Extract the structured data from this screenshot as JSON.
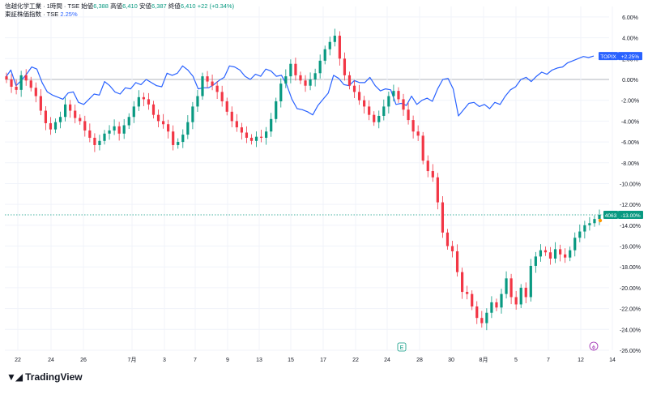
{
  "legend": {
    "line1_name": "信越化学工業 · 1時間 · TSE",
    "line1_open_label": "始値",
    "line1_open": "6,388",
    "line1_high_label": "高値",
    "line1_high": "6,410",
    "line1_low_label": "安値",
    "line1_low": "6,387",
    "line1_close_label": "終値",
    "line1_close": "6,410",
    "line1_change": "+22 (+0.34%)",
    "line2_name": "東証株価指数 · TSE",
    "line2_value": "2.25%"
  },
  "brand": {
    "name": "TradingView"
  },
  "colors": {
    "up": "#089981",
    "down": "#f23645",
    "compare": "#2962ff",
    "grid": "#f0f3fa",
    "zero": "#b2b5be"
  },
  "chart_data": {
    "type": "line",
    "y_axis": {
      "min": -26,
      "max": 7,
      "unit": "%",
      "ticks": [
        "6.00%",
        "4.00%",
        "2.00%",
        "0.00%",
        "-2.00%",
        "-4.00%",
        "-6.00%",
        "-8.00%",
        "-10.00%",
        "-12.00%",
        "-14.00%",
        "-16.00%",
        "-18.00%",
        "-20.00%",
        "-22.00%",
        "-24.00%",
        "-26.00%"
      ]
    },
    "x_ticks": [
      "22",
      "24",
      "26",
      "7月",
      "3",
      "7",
      "9",
      "13",
      "15",
      "17",
      "22",
      "24",
      "28",
      "30",
      "8月",
      "5",
      "7",
      "12",
      "14"
    ],
    "series": [
      {
        "name": "TOPIX",
        "badge": "TOPIX",
        "last_label": "+2.25%",
        "style": "line",
        "values": [
          0.2,
          0.9,
          -0.6,
          -0.1,
          0.5,
          1.2,
          1.0,
          -0.3,
          -1.2,
          -1.5,
          -1.7,
          -1.9,
          -1.3,
          -1.2,
          -2.2,
          -2.4,
          -1.9,
          -1.4,
          -1.5,
          -0.2,
          -0.6,
          -1.2,
          -1.4,
          -0.8,
          -0.9,
          -0.3,
          -0.5,
          0.0,
          -0.3,
          -0.6,
          -0.7,
          0.6,
          0.4,
          0.6,
          1.3,
          0.9,
          0.3,
          -0.9,
          -0.8,
          -0.8,
          -0.5,
          -0.1,
          0.2,
          1.3,
          1.2,
          0.9,
          0.3,
          0.0,
          0.5,
          0.3,
          1.0,
          0.8,
          0.3,
          0.4,
          -0.5,
          -1.9,
          -2.8,
          -2.9,
          -3.1,
          -3.4,
          -2.5,
          -1.9,
          -1.3,
          0.4,
          0.1,
          -0.5,
          -0.6,
          -0.1,
          -0.3,
          -0.3,
          0.2,
          -0.6,
          -1.1,
          -0.9,
          -1.0,
          -2.4,
          -2.3,
          -2.5,
          -1.6,
          -2.4,
          -2.0,
          -1.8,
          -2.1,
          -0.9,
          0.0,
          0.1,
          -0.9,
          -3.5,
          -2.9,
          -2.3,
          -2.2,
          -2.6,
          -2.4,
          -2.8,
          -2.2,
          -2.4,
          -1.6,
          -1.0,
          -0.7,
          0.0,
          0.2,
          -0.2,
          0.3,
          0.7,
          0.5,
          0.9,
          1.1,
          1.2,
          1.6,
          1.8,
          2.0,
          2.2,
          2.1,
          2.25
        ]
      },
      {
        "name": "信越化学工業",
        "badge": "4063",
        "last_label": "-13.00%",
        "style": "candles",
        "values": [
          0.0,
          -0.7,
          -1.0,
          0.4,
          -0.1,
          -0.8,
          -1.6,
          -3.0,
          -4.2,
          -4.8,
          -4.1,
          -3.6,
          -2.4,
          -3.0,
          -3.7,
          -4.0,
          -4.9,
          -5.6,
          -6.3,
          -5.9,
          -5.2,
          -4.9,
          -4.5,
          -5.2,
          -4.4,
          -3.6,
          -2.6,
          -1.7,
          -1.9,
          -2.4,
          -3.4,
          -4.0,
          -4.3,
          -5.0,
          -6.3,
          -6.0,
          -5.3,
          -4.1,
          -2.6,
          -1.6,
          0.3,
          -0.2,
          -0.6,
          -1.2,
          -2.1,
          -3.1,
          -4.0,
          -4.6,
          -5.1,
          -5.6,
          -5.9,
          -5.5,
          -5.6,
          -5.0,
          -3.8,
          -2.1,
          -0.4,
          0.3,
          1.5,
          0.4,
          -0.1,
          -0.6,
          0.0,
          0.6,
          1.8,
          2.9,
          3.6,
          4.2,
          2.0,
          0.4,
          -0.6,
          -1.2,
          -2.0,
          -2.6,
          -3.4,
          -4.1,
          -3.5,
          -2.6,
          -1.6,
          -1.1,
          -1.9,
          -2.9,
          -3.9,
          -5.0,
          -5.4,
          -7.8,
          -8.8,
          -9.4,
          -11.8,
          -14.7,
          -16.0,
          -16.5,
          -18.5,
          -20.4,
          -20.6,
          -21.8,
          -22.9,
          -23.4,
          -22.4,
          -21.4,
          -21.9,
          -20.6,
          -19.1,
          -20.9,
          -21.6,
          -20.0,
          -20.9,
          -17.9,
          -17.0,
          -16.4,
          -16.6,
          -17.2,
          -16.3,
          -16.8,
          -17.1,
          -16.4,
          -15.2,
          -14.6,
          -14.0,
          -13.8,
          -13.4,
          -13.0
        ]
      }
    ]
  }
}
